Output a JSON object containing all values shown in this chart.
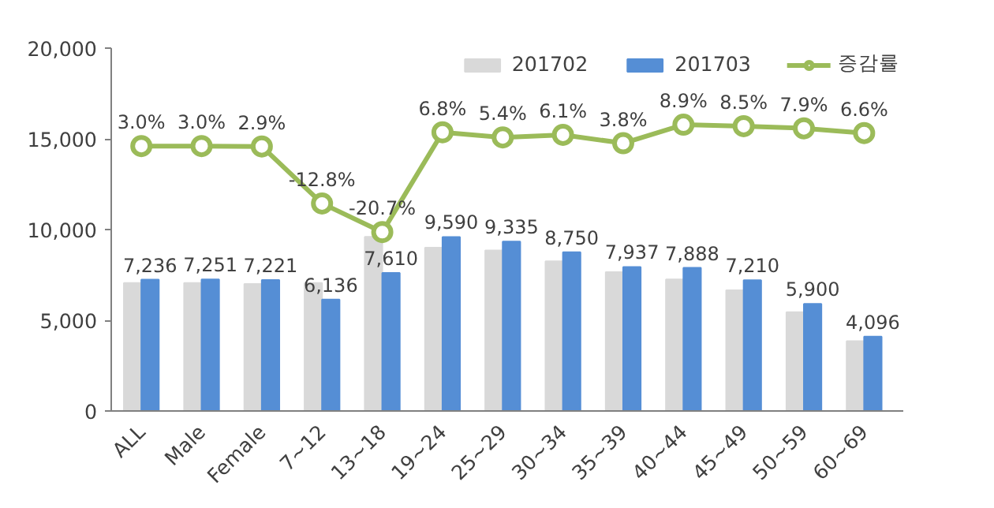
{
  "chart_data": {
    "type": "bar",
    "categories": [
      "ALL",
      "Male",
      "Female",
      "7~12",
      "13~18",
      "19~24",
      "25~29",
      "30~34",
      "35~39",
      "40~44",
      "45~49",
      "50~59",
      "60~69"
    ],
    "series": [
      {
        "name": "201702",
        "color": "#d9d9d9",
        "values": [
          7050,
          7050,
          7000,
          7050,
          9600,
          9000,
          8850,
          8250,
          7650,
          7250,
          6650,
          5450,
          3850
        ]
      },
      {
        "name": "201703",
        "color": "#558ed5",
        "values": [
          7236,
          7251,
          7221,
          6136,
          7610,
          9590,
          9335,
          8750,
          7937,
          7888,
          7210,
          5900,
          4096
        ],
        "value_labels": [
          "7,236",
          "7,251",
          "7,221",
          "6,136",
          "7,610",
          "9,590",
          "9,335",
          "8,750",
          "7,937",
          "7,888",
          "7,210",
          "5,900",
          "4,096"
        ]
      },
      {
        "name": "증감률",
        "type": "line",
        "axis": "y2",
        "color": "#9bbb59",
        "marker": "circle",
        "values": [
          3.0,
          3.0,
          2.9,
          -12.8,
          -20.7,
          6.8,
          5.4,
          6.1,
          3.8,
          8.9,
          8.5,
          7.9,
          6.6
        ],
        "value_labels": [
          "3.0%",
          "3.0%",
          "2.9%",
          "-12.8%",
          "-20.7%",
          "6.8%",
          "5.4%",
          "6.1%",
          "3.8%",
          "8.9%",
          "8.5%",
          "7.9%",
          "6.6%"
        ]
      }
    ],
    "ylim": [
      0,
      20000
    ],
    "yticks": [
      {
        "value": 0,
        "label": "0"
      },
      {
        "value": 5000,
        "label": "5,000"
      },
      {
        "value": 10000,
        "label": "10,000"
      },
      {
        "value": 15000,
        "label": "15,000"
      },
      {
        "value": 20000,
        "label": "20,000"
      }
    ],
    "y2lim": [
      -70,
      30
    ],
    "grid": false,
    "legend": "top right"
  }
}
